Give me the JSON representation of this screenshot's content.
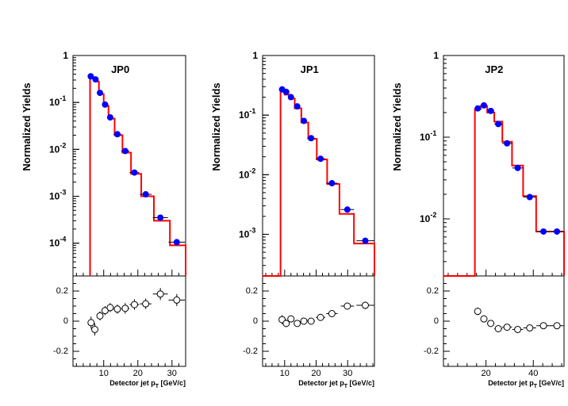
{
  "chart_data": [
    {
      "type": "line",
      "title": "JP0",
      "ylabel": "Normalized Yields",
      "xlabel": "Detector jet p_T [GeV/c]",
      "xlabel_main": "Detector jet p",
      "xlabel_sub": "T",
      "xlabel_unit": " [GeV/c]",
      "xlim": [
        1,
        34
      ],
      "ylim": [
        2e-05,
        1
      ],
      "yscale": "log",
      "xticks": [
        10,
        20,
        30
      ],
      "yticks": [
        0.0001,
        0.001,
        0.01,
        0.1,
        1
      ],
      "ytick_labels": [
        [
          "10",
          "-4"
        ],
        [
          "10",
          "-3"
        ],
        [
          "10",
          "-2"
        ],
        [
          "10",
          "-1"
        ],
        [
          "1",
          ""
        ]
      ],
      "hist_edges": [
        6,
        7.4,
        8.6,
        10,
        11.4,
        13.2,
        15.5,
        18,
        21,
        24.7,
        29.4,
        34
      ],
      "hist_values": [
        0.34,
        0.28,
        0.15,
        0.085,
        0.045,
        0.02,
        0.0085,
        0.003,
        0.001,
        0.0003,
        9e-05
      ],
      "hist_low": 2e-05,
      "points": {
        "x": [
          6.2,
          7.6,
          8.9,
          10.4,
          11.9,
          14,
          16.3,
          19,
          22.3,
          26.6,
          31.4
        ],
        "y": [
          0.36,
          0.31,
          0.16,
          0.09,
          0.048,
          0.021,
          0.0092,
          0.0032,
          0.0011,
          0.00035,
          0.000105
        ],
        "xerr": [
          0.6,
          0.6,
          0.6,
          0.7,
          0.8,
          1.1,
          1.2,
          1.4,
          1.7,
          2.2,
          2.4
        ]
      },
      "ratio": {
        "ylim": [
          -0.3,
          0.3
        ],
        "yticks": [
          -0.2,
          0,
          0.2
        ],
        "ytick_labels": [
          "-0.2",
          "0",
          "0.2"
        ],
        "x": [
          6.3,
          7.4,
          8.9,
          10.4,
          11.9,
          14,
          16.3,
          19,
          22.3,
          26.6,
          31.4
        ],
        "y": [
          -0.01,
          -0.055,
          0.035,
          0.07,
          0.09,
          0.08,
          0.085,
          0.11,
          0.115,
          0.18,
          0.14
        ],
        "xerr": [
          0.6,
          0.6,
          0.6,
          0.7,
          0.8,
          1.1,
          1.2,
          1.4,
          1.7,
          2.2,
          2.4
        ],
        "yerr": [
          0.04,
          0.04,
          0.03,
          0.03,
          0.03,
          0.03,
          0.035,
          0.035,
          0.035,
          0.04,
          0.04
        ]
      }
    },
    {
      "type": "line",
      "title": "JP1",
      "ylabel": "Normalized Yields",
      "xlabel": "Detector jet p_T [GeV/c]",
      "xlabel_main": "Detector jet p",
      "xlabel_sub": "T",
      "xlabel_unit": " [GeV/c]",
      "xlim": [
        3,
        38.5
      ],
      "ylim": [
        0.0002,
        1
      ],
      "yscale": "log",
      "xticks": [
        10,
        20,
        30
      ],
      "yticks": [
        0.001,
        0.01,
        0.1,
        1
      ],
      "ytick_labels": [
        [
          "10",
          "-3"
        ],
        [
          "10",
          "-2"
        ],
        [
          "10",
          "-1"
        ],
        [
          "1",
          ""
        ]
      ],
      "hist_edges": [
        3,
        8.7,
        10,
        11.4,
        13.2,
        15.3,
        17.5,
        20.2,
        23.5,
        27.4,
        32,
        38.5
      ],
      "hist_values": [
        0.0002,
        0.27,
        0.22,
        0.19,
        0.13,
        0.075,
        0.04,
        0.018,
        0.007,
        0.0022,
        0.0007
      ],
      "hist_low": 0.0002,
      "points": {
        "x": [
          9.2,
          10.5,
          12,
          14,
          16.1,
          18.4,
          21.4,
          25,
          29.9,
          35.6
        ],
        "y": [
          0.27,
          0.245,
          0.2,
          0.14,
          0.08,
          0.041,
          0.0185,
          0.0072,
          0.0026,
          0.00078
        ],
        "xerr": [
          0.5,
          0.6,
          0.7,
          0.9,
          1,
          1.2,
          1.5,
          1.8,
          2.1,
          2.8
        ]
      },
      "ratio": {
        "ylim": [
          -0.3,
          0.3
        ],
        "yticks": [
          -0.2,
          0,
          0.2
        ],
        "ytick_labels": [
          "-0.2",
          "0",
          "0.2"
        ],
        "x": [
          9.2,
          10.5,
          12,
          14,
          16.1,
          18.4,
          21.4,
          25,
          29.9,
          35.6
        ],
        "y": [
          0.01,
          -0.015,
          0.015,
          -0.015,
          0.0,
          0.0,
          0.025,
          0.05,
          0.1,
          0.105
        ],
        "xerr": [
          0.5,
          0.6,
          0.7,
          0.9,
          1,
          1.2,
          1.5,
          1.8,
          2.1,
          2.8
        ],
        "yerr": [
          0.03,
          0.025,
          0.02,
          0.02,
          0.02,
          0.02,
          0.02,
          0.02,
          0.02,
          0.025
        ]
      }
    },
    {
      "type": "line",
      "title": "JP2",
      "ylabel": "Normalized Yields",
      "xlabel": "Detector jet p_T [GeV/c]",
      "xlabel_main": "Detector jet p",
      "xlabel_sub": "T",
      "xlabel_unit": " [GeV/c]",
      "xlim": [
        2,
        53
      ],
      "ylim": [
        0.002,
        1
      ],
      "yscale": "log",
      "xticks": [
        20,
        40
      ],
      "yticks": [
        0.01,
        0.1,
        1
      ],
      "ytick_labels": [
        [
          "10",
          "-2"
        ],
        [
          "10",
          "-1"
        ],
        [
          "1",
          ""
        ]
      ],
      "hist_edges": [
        2,
        15.3,
        17.7,
        20.5,
        23.5,
        26.9,
        31,
        35.7,
        41.2,
        47.3,
        53
      ],
      "hist_values": [
        0.002,
        0.22,
        0.24,
        0.2,
        0.155,
        0.088,
        0.045,
        0.019,
        0.007,
        0.007
      ],
      "hist_low": 0.002,
      "points": {
        "x": [
          16.5,
          19.1,
          22,
          25.2,
          28.9,
          33.4,
          38.5,
          44.3,
          50
        ],
        "y": [
          0.225,
          0.245,
          0.21,
          0.145,
          0.084,
          0.042,
          0.0185,
          0.007,
          0.007
        ],
        "xerr": [
          1.2,
          1.4,
          1.5,
          1.7,
          2.1,
          2.3,
          2.7,
          3,
          2.8
        ]
      },
      "ratio": {
        "ylim": [
          -0.3,
          0.3
        ],
        "yticks": [
          -0.2,
          0,
          0.2
        ],
        "ytick_labels": [
          "-0.2",
          "0",
          "0.2"
        ],
        "x": [
          16.5,
          19.1,
          22,
          25.2,
          28.9,
          33.4,
          38.5,
          44.3,
          50
        ],
        "y": [
          0.065,
          0.015,
          -0.015,
          -0.05,
          -0.04,
          -0.055,
          -0.045,
          -0.03,
          -0.03
        ],
        "xerr": [
          1.2,
          1.4,
          1.5,
          1.7,
          2.1,
          2.3,
          2.7,
          3,
          2.8
        ],
        "yerr": [
          0.025,
          0.02,
          0.02,
          0.015,
          0.015,
          0.015,
          0.015,
          0.015,
          0.015
        ]
      }
    }
  ],
  "colors": {
    "histogram": "#ff0000",
    "marker": "#0000ff",
    "axis": "#000000"
  }
}
